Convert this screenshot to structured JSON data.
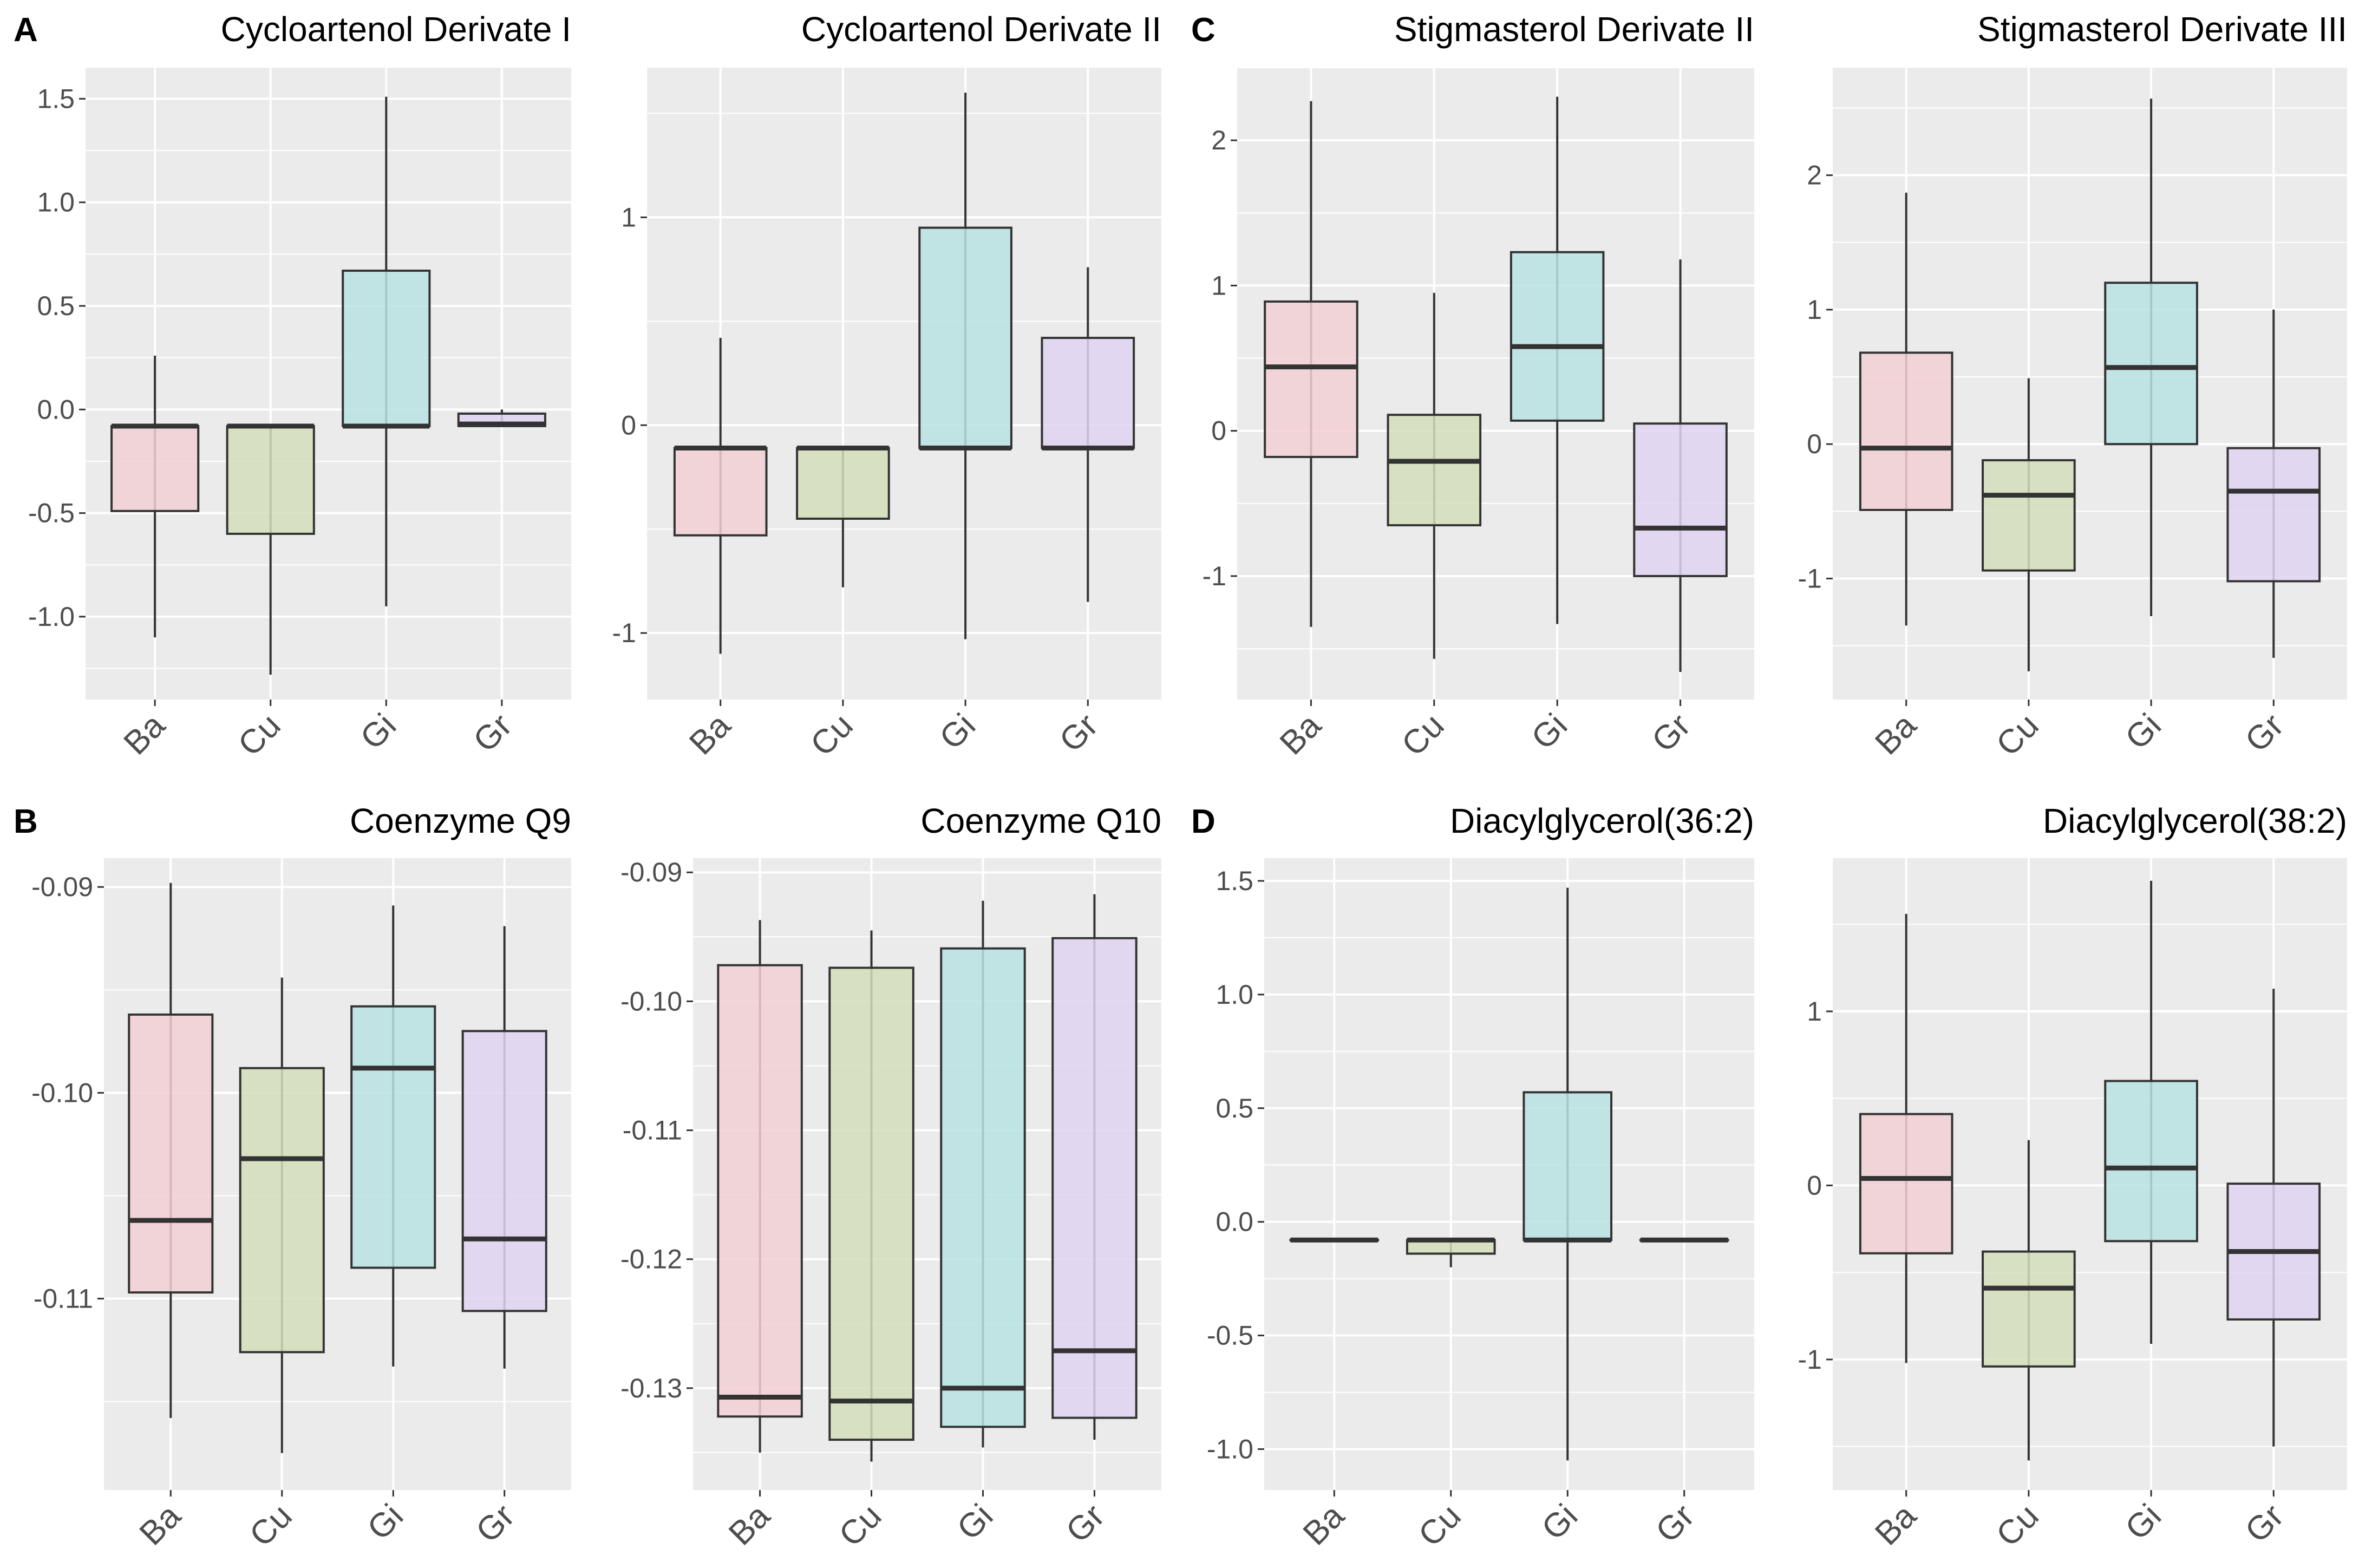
{
  "figure": {
    "panel_letters": [
      "A",
      "B",
      "C",
      "D"
    ],
    "colors": {
      "panel_background": "#EBEBEB",
      "grid": "#FFFFFF",
      "box_outline": "#333333",
      "Ba": "#F2D0D3",
      "Cu": "#D4DFBB",
      "Gi": "#B8E2E3",
      "Gr": "#E0D4F1"
    }
  },
  "chart_data": [
    {
      "type": "box",
      "title": "Cycloartenol Derivate I",
      "panel_letter": "A",
      "categories": [
        "Ba",
        "Cu",
        "Gi",
        "Gr"
      ],
      "ylim": [
        -1.4,
        1.65
      ],
      "yticks": [
        -1.0,
        -0.5,
        0.0,
        0.5,
        1.0,
        1.5
      ],
      "ytick_labels": [
        "-1.0",
        "-0.5",
        "0.0",
        "0.5",
        "1.0",
        "1.5"
      ],
      "boxes": [
        {
          "group": "Ba",
          "min": -1.1,
          "q1": -0.49,
          "median": -0.08,
          "q3": -0.08,
          "max": 0.26
        },
        {
          "group": "Cu",
          "min": -1.28,
          "q1": -0.6,
          "median": -0.08,
          "q3": -0.08,
          "max": -0.08
        },
        {
          "group": "Gi",
          "min": -0.95,
          "q1": -0.08,
          "median": -0.08,
          "q3": 0.67,
          "max": 1.51
        },
        {
          "group": "Gr",
          "min": -0.08,
          "q1": -0.08,
          "median": -0.07,
          "q3": -0.02,
          "max": 0.0
        }
      ]
    },
    {
      "type": "box",
      "title": "Cycloartenol Derivate II",
      "panel_letter": "",
      "categories": [
        "Ba",
        "Cu",
        "Gi",
        "Gr"
      ],
      "ylim": [
        -1.32,
        1.72
      ],
      "yticks": [
        -1,
        0,
        1
      ],
      "ytick_labels": [
        "-1",
        "0",
        "1"
      ],
      "boxes": [
        {
          "group": "Ba",
          "min": -1.1,
          "q1": -0.53,
          "median": -0.11,
          "q3": -0.11,
          "max": 0.42
        },
        {
          "group": "Cu",
          "min": -0.78,
          "q1": -0.45,
          "median": -0.11,
          "q3": -0.11,
          "max": -0.11
        },
        {
          "group": "Gi",
          "min": -1.03,
          "q1": -0.11,
          "median": -0.11,
          "q3": 0.95,
          "max": 1.6
        },
        {
          "group": "Gr",
          "min": -0.85,
          "q1": -0.11,
          "median": -0.11,
          "q3": 0.42,
          "max": 0.76
        }
      ]
    },
    {
      "type": "box",
      "title": "Stigmasterol Derivate II",
      "panel_letter": "C",
      "categories": [
        "Ba",
        "Cu",
        "Gi",
        "Gr"
      ],
      "ylim": [
        -1.85,
        2.5
      ],
      "yticks": [
        -1,
        0,
        1,
        2
      ],
      "ytick_labels": [
        "-1",
        "0",
        "1",
        "2"
      ],
      "boxes": [
        {
          "group": "Ba",
          "min": -1.35,
          "q1": -0.18,
          "median": 0.44,
          "q3": 0.89,
          "max": 2.27
        },
        {
          "group": "Cu",
          "min": -1.57,
          "q1": -0.65,
          "median": -0.21,
          "q3": 0.11,
          "max": 0.95
        },
        {
          "group": "Gi",
          "min": -1.33,
          "q1": 0.07,
          "median": 0.58,
          "q3": 1.23,
          "max": 2.3
        },
        {
          "group": "Gr",
          "min": -1.66,
          "q1": -1.0,
          "median": -0.67,
          "q3": 0.05,
          "max": 1.18
        }
      ]
    },
    {
      "type": "box",
      "title": "Stigmasterol Derivate III",
      "panel_letter": "",
      "categories": [
        "Ba",
        "Cu",
        "Gi",
        "Gr"
      ],
      "ylim": [
        -1.9,
        2.8
      ],
      "yticks": [
        -1,
        0,
        1,
        2
      ],
      "ytick_labels": [
        "-1",
        "0",
        "1",
        "2"
      ],
      "boxes": [
        {
          "group": "Ba",
          "min": -1.35,
          "q1": -0.49,
          "median": -0.03,
          "q3": 0.68,
          "max": 1.87
        },
        {
          "group": "Cu",
          "min": -1.69,
          "q1": -0.94,
          "median": -0.38,
          "q3": -0.12,
          "max": 0.49
        },
        {
          "group": "Gi",
          "min": -1.28,
          "q1": 0.0,
          "median": 0.57,
          "q3": 1.2,
          "max": 2.57
        },
        {
          "group": "Gr",
          "min": -1.59,
          "q1": -1.02,
          "median": -0.35,
          "q3": -0.03,
          "max": 1.0
        }
      ]
    },
    {
      "type": "box",
      "title": "Coenzyme Q9",
      "panel_letter": "B",
      "categories": [
        "Ba",
        "Cu",
        "Gi",
        "Gr"
      ],
      "ylim": [
        -0.1193,
        -0.0886
      ],
      "yticks": [
        -0.11,
        -0.1,
        -0.09
      ],
      "ytick_labels": [
        "-0.11",
        "-0.10",
        "-0.09"
      ],
      "boxes": [
        {
          "group": "Ba",
          "min": -0.1158,
          "q1": -0.1097,
          "median": -0.1062,
          "q3": -0.0962,
          "max": -0.0898
        },
        {
          "group": "Cu",
          "min": -0.1175,
          "q1": -0.1126,
          "median": -0.1032,
          "q3": -0.0988,
          "max": -0.0944
        },
        {
          "group": "Gi",
          "min": -0.1133,
          "q1": -0.1085,
          "median": -0.0988,
          "q3": -0.0958,
          "max": -0.0909
        },
        {
          "group": "Gr",
          "min": -0.1134,
          "q1": -0.1106,
          "median": -0.1071,
          "q3": -0.097,
          "max": -0.0919
        }
      ]
    },
    {
      "type": "box",
      "title": "Coenzyme Q10",
      "panel_letter": "",
      "categories": [
        "Ba",
        "Cu",
        "Gi",
        "Gr"
      ],
      "ylim": [
        -0.1379,
        -0.0889
      ],
      "yticks": [
        -0.13,
        -0.12,
        -0.11,
        -0.1,
        -0.09
      ],
      "ytick_labels": [
        "-0.13",
        "-0.12",
        "-0.11",
        "-0.10",
        "-0.09"
      ],
      "boxes": [
        {
          "group": "Ba",
          "min": -0.135,
          "q1": -0.1322,
          "median": -0.1307,
          "q3": -0.0972,
          "max": -0.0937
        },
        {
          "group": "Cu",
          "min": -0.1357,
          "q1": -0.134,
          "median": -0.131,
          "q3": -0.0974,
          "max": -0.0945
        },
        {
          "group": "Gi",
          "min": -0.1346,
          "q1": -0.133,
          "median": -0.13,
          "q3": -0.0959,
          "max": -0.0922
        },
        {
          "group": "Gr",
          "min": -0.134,
          "q1": -0.1323,
          "median": -0.1271,
          "q3": -0.0951,
          "max": -0.0917
        }
      ]
    },
    {
      "type": "box",
      "title": "Diacylglycerol(36:2)",
      "panel_letter": "D",
      "categories": [
        "Ba",
        "Cu",
        "Gi",
        "Gr"
      ],
      "ylim": [
        -1.18,
        1.6
      ],
      "yticks": [
        -1.0,
        -0.5,
        0.0,
        0.5,
        1.0,
        1.5
      ],
      "ytick_labels": [
        "-1.0",
        "-0.5",
        "0.0",
        "0.5",
        "1.0",
        "1.5"
      ],
      "boxes": [
        {
          "group": "Ba",
          "min": -0.08,
          "q1": -0.08,
          "median": -0.08,
          "q3": -0.08,
          "max": -0.08
        },
        {
          "group": "Cu",
          "min": -0.2,
          "q1": -0.14,
          "median": -0.08,
          "q3": -0.08,
          "max": -0.08
        },
        {
          "group": "Gi",
          "min": -1.05,
          "q1": -0.08,
          "median": -0.08,
          "q3": 0.57,
          "max": 1.47
        },
        {
          "group": "Gr",
          "min": -0.08,
          "q1": -0.08,
          "median": -0.08,
          "q3": -0.08,
          "max": -0.08
        }
      ]
    },
    {
      "type": "box",
      "title": "Diacylglycerol(38:2)",
      "panel_letter": "",
      "categories": [
        "Ba",
        "Cu",
        "Gi",
        "Gr"
      ],
      "ylim": [
        -1.75,
        1.88
      ],
      "yticks": [
        -1,
        0,
        1
      ],
      "ytick_labels": [
        "-1",
        "0",
        "1"
      ],
      "boxes": [
        {
          "group": "Ba",
          "min": -1.02,
          "q1": -0.39,
          "median": 0.04,
          "q3": 0.41,
          "max": 1.56
        },
        {
          "group": "Cu",
          "min": -1.58,
          "q1": -1.04,
          "median": -0.59,
          "q3": -0.38,
          "max": 0.26
        },
        {
          "group": "Gi",
          "min": -0.91,
          "q1": -0.32,
          "median": 0.1,
          "q3": 0.6,
          "max": 1.75
        },
        {
          "group": "Gr",
          "min": -1.5,
          "q1": -0.77,
          "median": -0.38,
          "q3": 0.01,
          "max": 1.13
        }
      ]
    }
  ]
}
